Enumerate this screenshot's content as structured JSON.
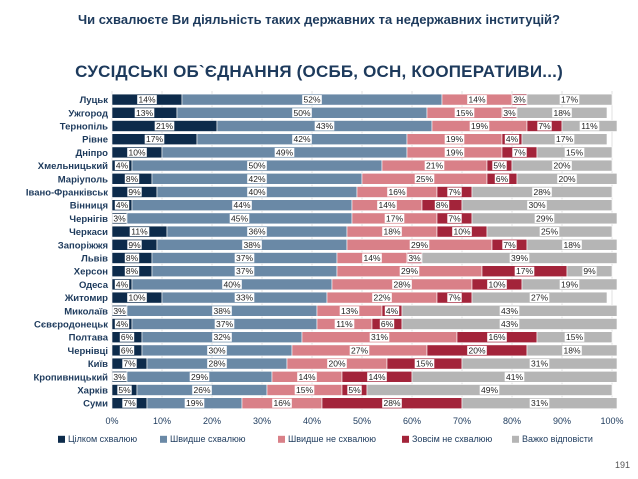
{
  "header": {
    "question": "Чи схвалюєте Ви діяльність таких державних та недержавних інституцій?",
    "subtitle": "СУСІДСЬКІ ОБ`ЄДНАННЯ (ОСББ, ОСН, КООПЕРАТИВИ...)"
  },
  "page_number": "191",
  "chart_data": {
    "type": "bar",
    "orientation": "horizontal",
    "stacked": true,
    "percent_scale": true,
    "xlim": [
      0,
      100
    ],
    "x_ticks": [
      "0%",
      "10%",
      "20%",
      "30%",
      "40%",
      "50%",
      "60%",
      "70%",
      "80%",
      "90%",
      "100%"
    ],
    "legend_position": "bottom",
    "grid": true,
    "categories": [
      "Луцьк",
      "Ужгород",
      "Тернопіль",
      "Рівне",
      "Дніпро",
      "Хмельницький",
      "Маріуполь",
      "Івано-Франківськ",
      "Вінниця",
      "Чернігів",
      "Черкаси",
      "Запоріжжя",
      "Львів",
      "Херсон",
      "Одеса",
      "Житомир",
      "Миколаїв",
      "Сєвєродонецьк",
      "Полтава",
      "Чернівці",
      "Київ",
      "Кропивницький",
      "Харків",
      "Суми"
    ],
    "series": [
      {
        "name": "Цілком схвалюю",
        "color": "#0d2b4b",
        "values": [
          14,
          13,
          21,
          17,
          10,
          4,
          8,
          9,
          4,
          3,
          11,
          9,
          8,
          8,
          4,
          10,
          3,
          4,
          6,
          6,
          7,
          3,
          5,
          7
        ]
      },
      {
        "name": "Швидше схвалюю",
        "color": "#6a89a6",
        "values": [
          52,
          50,
          43,
          42,
          49,
          50,
          42,
          40,
          44,
          45,
          36,
          38,
          37,
          37,
          40,
          33,
          38,
          37,
          32,
          30,
          28,
          29,
          26,
          19
        ]
      },
      {
        "name": "Швидше не схвалюю",
        "color": "#d98088",
        "values": [
          14,
          15,
          19,
          19,
          19,
          21,
          25,
          16,
          14,
          17,
          18,
          29,
          14,
          29,
          28,
          22,
          13,
          11,
          31,
          27,
          20,
          14,
          15,
          16
        ]
      },
      {
        "name": "Зовсім не схвалюю",
        "color": "#a3243a",
        "values": [
          3,
          3,
          7,
          4,
          7,
          5,
          6,
          7,
          8,
          7,
          10,
          7,
          3,
          17,
          10,
          7,
          4,
          6,
          16,
          20,
          15,
          14,
          5,
          28
        ]
      },
      {
        "name": "Важко відповісти",
        "color": "#b5b5b5",
        "values": [
          17,
          18,
          11,
          17,
          15,
          20,
          20,
          28,
          30,
          29,
          25,
          18,
          39,
          9,
          19,
          27,
          43,
          43,
          15,
          18,
          31,
          41,
          49,
          31
        ]
      }
    ]
  }
}
